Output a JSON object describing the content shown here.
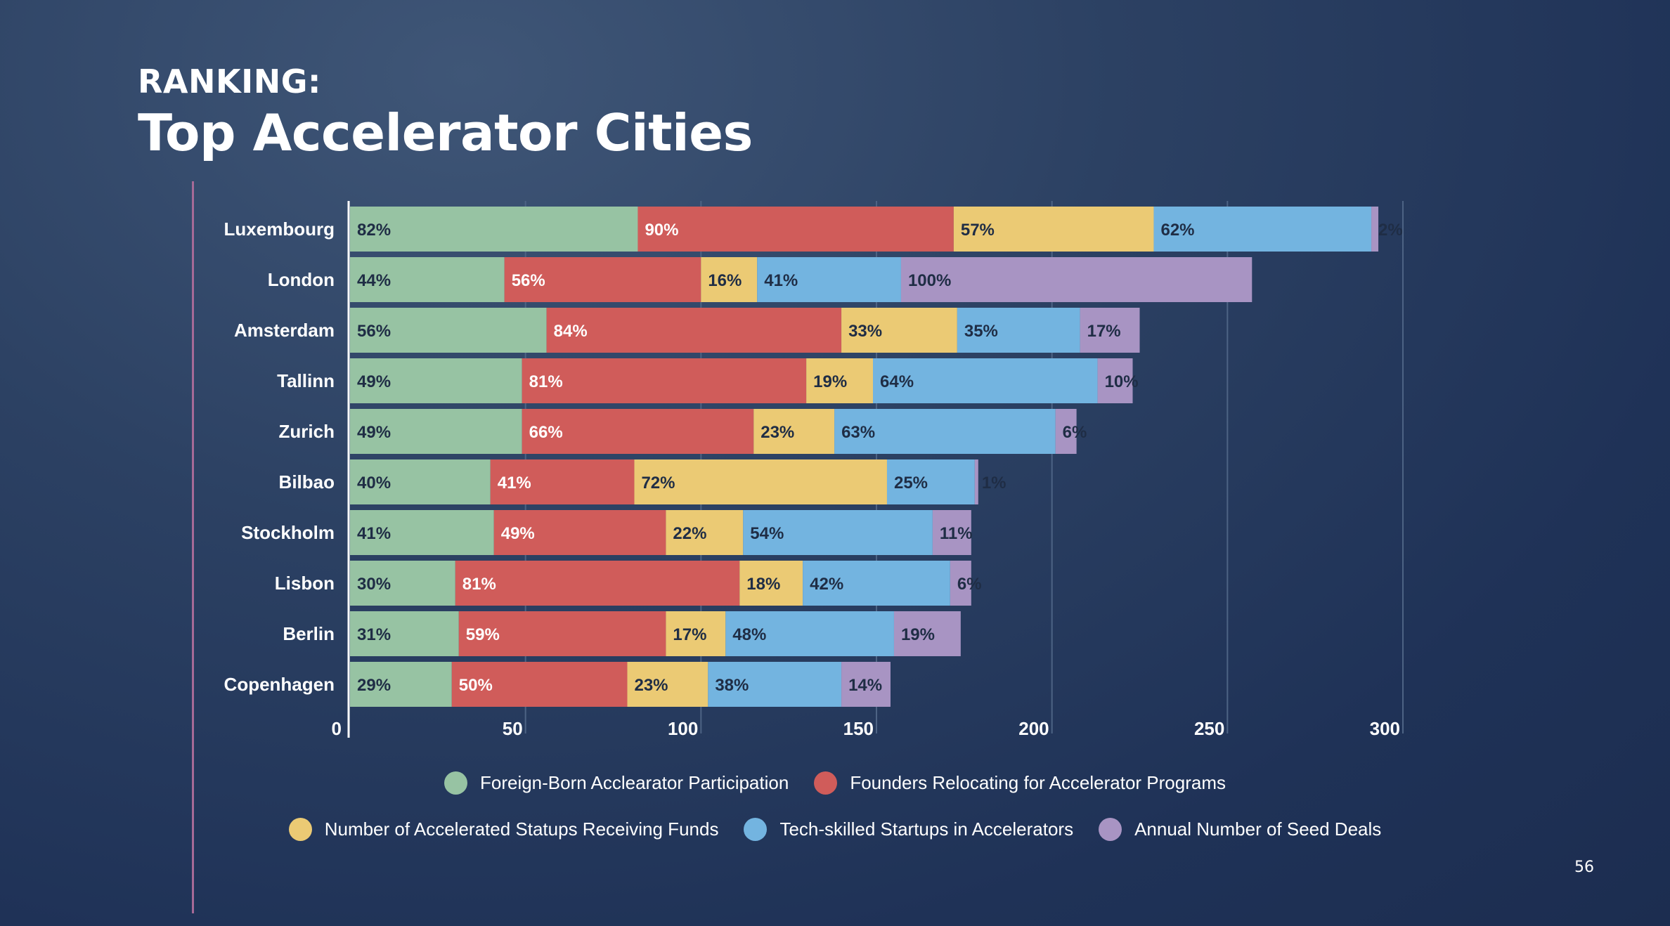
{
  "slide": {
    "kicker": "RANKING:",
    "title": "Top Accelerator Cities",
    "page_number": "56"
  },
  "chart_data": {
    "type": "bar",
    "orientation": "horizontal",
    "stacked": true,
    "categories": [
      "Luxembourg",
      "London",
      "Amsterdam",
      "Tallinn",
      "Zurich",
      "Bilbao",
      "Stockholm",
      "Lisbon",
      "Berlin",
      "Copenhagen"
    ],
    "series": [
      {
        "name": "Foreign-Born Acclearator Participation",
        "color": "#97c3a3",
        "values": [
          82,
          44,
          56,
          49,
          49,
          40,
          41,
          30,
          31,
          29
        ],
        "labels": [
          "82%",
          "44%",
          "56%",
          "49%",
          "49%",
          "40%",
          "41%",
          "30%",
          "31%",
          "29%"
        ]
      },
      {
        "name": "Founders Relocating for Accelerator Programs",
        "color": "#d05c5a",
        "values": [
          90,
          56,
          84,
          81,
          66,
          41,
          49,
          81,
          59,
          50
        ],
        "labels": [
          "90%",
          "56%",
          "84%",
          "81%",
          "66%",
          "41%",
          "49%",
          "81%",
          "59%",
          "50%"
        ]
      },
      {
        "name": "Number of Accelerated Statups Receiving Funds",
        "color": "#ebca74",
        "values": [
          57,
          16,
          33,
          19,
          23,
          72,
          22,
          18,
          17,
          23
        ],
        "labels": [
          "57%",
          "16%",
          "33%",
          "19%",
          "23%",
          "72%",
          "22%",
          "18%",
          "17%",
          "23%"
        ]
      },
      {
        "name": "Tech-skilled Startups in Accelerators",
        "color": "#73b4e0",
        "values": [
          62,
          41,
          35,
          64,
          63,
          25,
          54,
          42,
          48,
          38
        ],
        "labels": [
          "62%",
          "41%",
          "35%",
          "64%",
          "63%",
          "25%",
          "54%",
          "42%",
          "48%",
          "38%"
        ]
      },
      {
        "name": "Annual Number of Seed Deals",
        "color": "#a894c3",
        "values": [
          2,
          100,
          17,
          10,
          6,
          1,
          11,
          6,
          19,
          14
        ],
        "labels": [
          "2%",
          "100%",
          "17%",
          "10%",
          "6%",
          "1%",
          "11%",
          "6%",
          "19%",
          "14%"
        ]
      }
    ],
    "x_ticks": [
      0,
      50,
      100,
      150,
      200,
      250,
      300
    ],
    "xlim": [
      0,
      300
    ],
    "grid": "vertical",
    "legend_position": "bottom"
  }
}
